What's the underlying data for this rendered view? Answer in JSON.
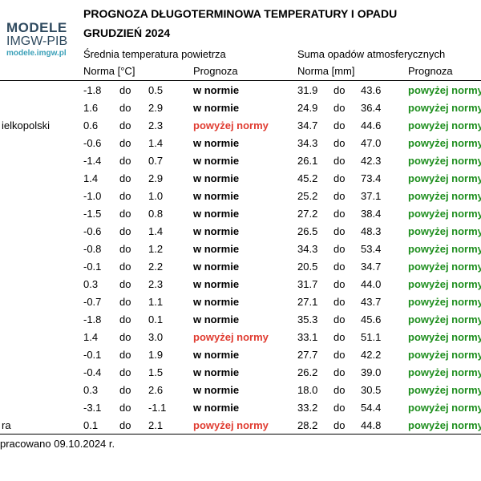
{
  "logo": {
    "main": "MODELE",
    "sub": "IMGW-PIB",
    "url": "modele.imgw.pl"
  },
  "title": "PROGNOZA DŁUGOTERMINOWA TEMPERATURY I OPADU",
  "subtitle": "GRUDZIEŃ 2024",
  "temperature_section": {
    "heading": "Średnia temperatura powietrza",
    "norm_label": "Norma [°C]",
    "forecast_label": "Prognoza"
  },
  "precipitation_section": {
    "heading": "Suma opadów atmosferycznych",
    "norm_label": "Norma [mm]",
    "forecast_label": "Prognoza"
  },
  "connector": "do",
  "colors": {
    "normal": "#000000",
    "above_temp": "#e03c31",
    "above_precip": "#1f8f1f"
  },
  "rows": [
    {
      "region": "",
      "t_min": "-1.8",
      "t_max": "0.5",
      "t_forecast": "w normie",
      "t_class": "normal",
      "p_min": "31.9",
      "p_max": "43.6",
      "p_forecast": "powyżej normy"
    },
    {
      "region": "",
      "t_min": "1.6",
      "t_max": "2.9",
      "t_forecast": "w normie",
      "t_class": "normal",
      "p_min": "24.9",
      "p_max": "36.4",
      "p_forecast": "powyżej normy"
    },
    {
      "region": "ielkopolski",
      "t_min": "0.6",
      "t_max": "2.3",
      "t_forecast": "powyżej normy",
      "t_class": "above",
      "p_min": "34.7",
      "p_max": "44.6",
      "p_forecast": "powyżej normy"
    },
    {
      "region": "",
      "t_min": "-0.6",
      "t_max": "1.4",
      "t_forecast": "w normie",
      "t_class": "normal",
      "p_min": "34.3",
      "p_max": "47.0",
      "p_forecast": "powyżej normy"
    },
    {
      "region": "",
      "t_min": "-1.4",
      "t_max": "0.7",
      "t_forecast": "w normie",
      "t_class": "normal",
      "p_min": "26.1",
      "p_max": "42.3",
      "p_forecast": "powyżej normy"
    },
    {
      "region": "",
      "t_min": "1.4",
      "t_max": "2.9",
      "t_forecast": "w normie",
      "t_class": "normal",
      "p_min": "45.2",
      "p_max": "73.4",
      "p_forecast": "powyżej normy"
    },
    {
      "region": "",
      "t_min": "-1.0",
      "t_max": "1.0",
      "t_forecast": "w normie",
      "t_class": "normal",
      "p_min": "25.2",
      "p_max": "37.1",
      "p_forecast": "powyżej normy"
    },
    {
      "region": "",
      "t_min": "-1.5",
      "t_max": "0.8",
      "t_forecast": "w normie",
      "t_class": "normal",
      "p_min": "27.2",
      "p_max": "38.4",
      "p_forecast": "powyżej normy"
    },
    {
      "region": "",
      "t_min": "-0.6",
      "t_max": "1.4",
      "t_forecast": "w normie",
      "t_class": "normal",
      "p_min": "26.5",
      "p_max": "48.3",
      "p_forecast": "powyżej normy"
    },
    {
      "region": "",
      "t_min": "-0.8",
      "t_max": "1.2",
      "t_forecast": "w normie",
      "t_class": "normal",
      "p_min": "34.3",
      "p_max": "53.4",
      "p_forecast": "powyżej normy"
    },
    {
      "region": "",
      "t_min": "-0.1",
      "t_max": "2.2",
      "t_forecast": "w normie",
      "t_class": "normal",
      "p_min": "20.5",
      "p_max": "34.7",
      "p_forecast": "powyżej normy"
    },
    {
      "region": "",
      "t_min": "0.3",
      "t_max": "2.3",
      "t_forecast": "w normie",
      "t_class": "normal",
      "p_min": "31.7",
      "p_max": "44.0",
      "p_forecast": "powyżej normy"
    },
    {
      "region": "",
      "t_min": "-0.7",
      "t_max": "1.1",
      "t_forecast": "w normie",
      "t_class": "normal",
      "p_min": "27.1",
      "p_max": "43.7",
      "p_forecast": "powyżej normy"
    },
    {
      "region": "",
      "t_min": "-1.8",
      "t_max": "0.1",
      "t_forecast": "w normie",
      "t_class": "normal",
      "p_min": "35.3",
      "p_max": "45.6",
      "p_forecast": "powyżej normy"
    },
    {
      "region": "",
      "t_min": "1.4",
      "t_max": "3.0",
      "t_forecast": "powyżej normy",
      "t_class": "above",
      "p_min": "33.1",
      "p_max": "51.1",
      "p_forecast": "powyżej normy"
    },
    {
      "region": "",
      "t_min": "-0.1",
      "t_max": "1.9",
      "t_forecast": "w normie",
      "t_class": "normal",
      "p_min": "27.7",
      "p_max": "42.2",
      "p_forecast": "powyżej normy"
    },
    {
      "region": "",
      "t_min": "-0.4",
      "t_max": "1.5",
      "t_forecast": "w normie",
      "t_class": "normal",
      "p_min": "26.2",
      "p_max": "39.0",
      "p_forecast": "powyżej normy"
    },
    {
      "region": "",
      "t_min": "0.3",
      "t_max": "2.6",
      "t_forecast": "w normie",
      "t_class": "normal",
      "p_min": "18.0",
      "p_max": "30.5",
      "p_forecast": "powyżej normy"
    },
    {
      "region": "",
      "t_min": "-3.1",
      "t_max": "-1.1",
      "t_forecast": "w normie",
      "t_class": "normal",
      "p_min": "33.2",
      "p_max": "54.4",
      "p_forecast": "powyżej normy"
    },
    {
      "region": "ra",
      "t_min": "0.1",
      "t_max": "2.1",
      "t_forecast": "powyżej normy",
      "t_class": "above",
      "p_min": "28.2",
      "p_max": "44.8",
      "p_forecast": "powyżej normy"
    }
  ],
  "footer": "pracowano 09.10.2024 r."
}
